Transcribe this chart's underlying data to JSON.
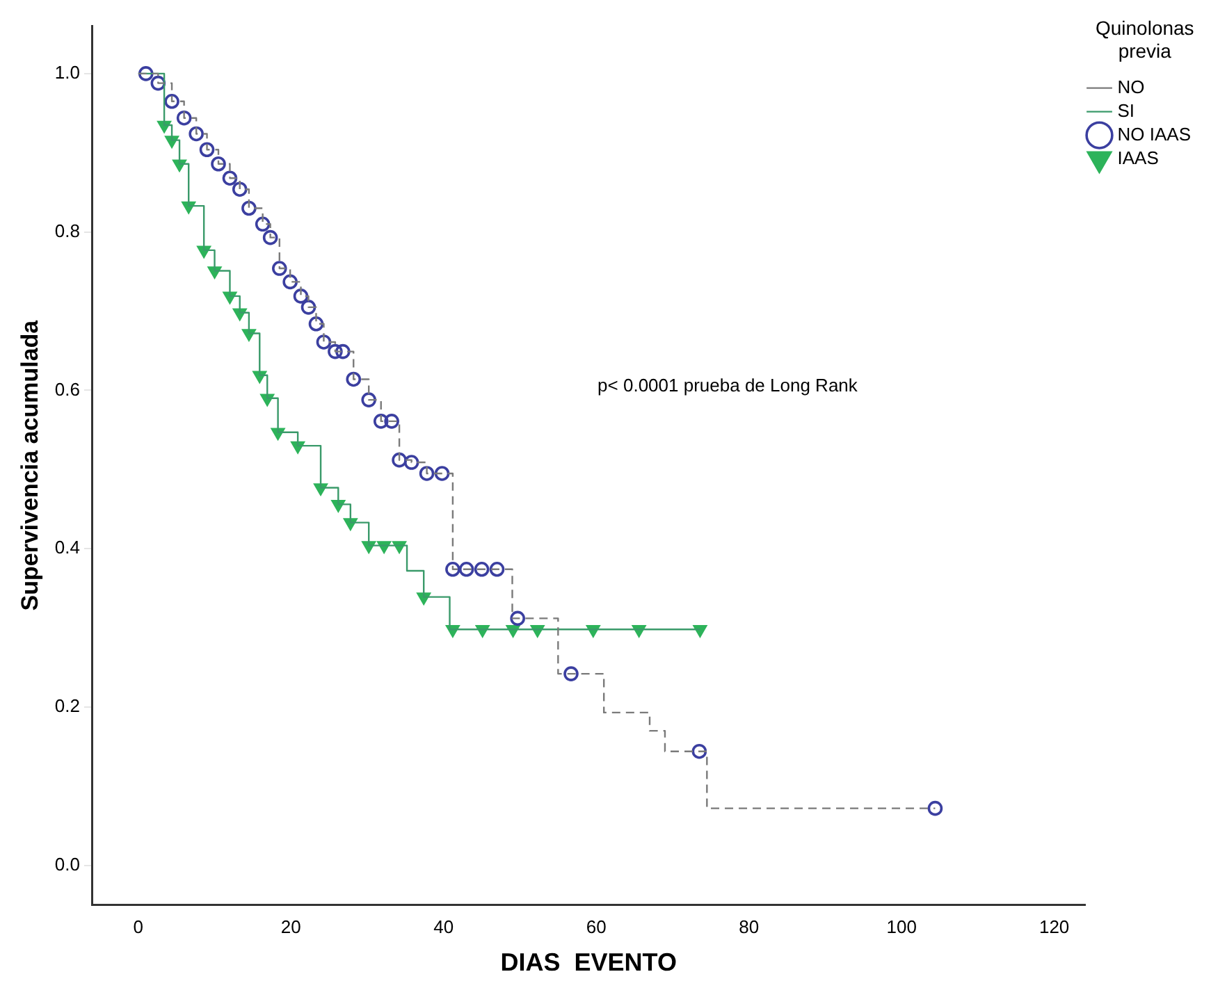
{
  "chart_data": {
    "type": "line",
    "xlabel": "DIAS  EVENTO",
    "ylabel": "Supervivencia acumulada",
    "legend_title": "Quinolonas previa",
    "legend": "top right",
    "grid": false,
    "xlim": [
      -6,
      124
    ],
    "xticks": [
      0,
      20,
      40,
      60,
      80,
      100,
      120
    ],
    "ylim": [
      -0.05,
      1.06
    ],
    "yticks": [
      {
        "value": 0,
        "label": "0.0"
      },
      {
        "value": 0.2,
        "label": "0.2"
      },
      {
        "value": 0.4,
        "label": "0.4"
      },
      {
        "value": 0.6,
        "label": "0.6"
      },
      {
        "value": 0.8,
        "label": "0.8"
      },
      {
        "value": 1,
        "label": "1.0"
      }
    ],
    "annotations": [
      "p< 0.0001 prueba de Long Rank"
    ],
    "series": [
      {
        "name": "NO",
        "type": "step",
        "color": "#7a7a7a",
        "line_style": "dashed",
        "marker": "none",
        "x": [
          0,
          1,
          2.6,
          4.4,
          6,
          7.6,
          9,
          10.5,
          12,
          13.3,
          14.5,
          16.3,
          17.3,
          18.5,
          19.9,
          21.3,
          22.3,
          23.3,
          24.3,
          25.8,
          28.2,
          30.2,
          31.8,
          34.2,
          35.8,
          37.8,
          41.2,
          49,
          55,
          61,
          67,
          69,
          74.5,
          104.4
        ],
        "values": [
          1,
          1,
          0.988,
          0.965,
          0.944,
          0.924,
          0.904,
          0.886,
          0.868,
          0.854,
          0.83,
          0.81,
          0.793,
          0.754,
          0.737,
          0.719,
          0.705,
          0.684,
          0.661,
          0.649,
          0.614,
          0.588,
          0.561,
          0.512,
          0.509,
          0.495,
          0.374,
          0.312,
          0.242,
          0.193,
          0.17,
          0.144,
          0.072,
          0.072
        ]
      },
      {
        "name": "SI",
        "type": "step",
        "color": "#3a9a6a",
        "line_style": "solid",
        "marker": "none",
        "x": [
          0,
          3.4,
          4.4,
          5.4,
          6.6,
          8.6,
          10,
          12,
          13.3,
          14.5,
          15.9,
          16.9,
          18.3,
          20.9,
          23.9,
          26.2,
          27.8,
          30.2,
          35.2,
          37.4,
          40.8,
          73.6
        ],
        "values": [
          1,
          0.935,
          0.916,
          0.886,
          0.833,
          0.777,
          0.751,
          0.719,
          0.698,
          0.672,
          0.619,
          0.59,
          0.547,
          0.53,
          0.477,
          0.456,
          0.433,
          0.404,
          0.372,
          0.339,
          0.298,
          0.298
        ]
      },
      {
        "name": "NO IAAS",
        "type": "scatter",
        "color": "#3b3fa0",
        "marker": "circle",
        "x": [
          1,
          2.6,
          4.4,
          6,
          7.6,
          9,
          10.5,
          12,
          13.3,
          14.5,
          16.3,
          17.3,
          18.5,
          19.9,
          21.3,
          22.3,
          23.3,
          24.3,
          25.8,
          26.8,
          28.2,
          30.2,
          31.8,
          33.2,
          34.2,
          35.8,
          37.8,
          39.8,
          41.2,
          43,
          45,
          47,
          49.7,
          56.7,
          73.5,
          104.4
        ],
        "values": [
          1,
          0.988,
          0.965,
          0.944,
          0.924,
          0.904,
          0.886,
          0.868,
          0.854,
          0.83,
          0.81,
          0.793,
          0.754,
          0.737,
          0.719,
          0.705,
          0.684,
          0.661,
          0.649,
          0.649,
          0.614,
          0.588,
          0.561,
          0.561,
          0.512,
          0.509,
          0.495,
          0.495,
          0.374,
          0.374,
          0.374,
          0.374,
          0.312,
          0.242,
          0.144,
          0.072
        ]
      },
      {
        "name": "IAAS",
        "type": "scatter",
        "color": "#2db35a",
        "marker": "triangle",
        "x": [
          3.4,
          4.4,
          5.4,
          6.6,
          8.6,
          10,
          12,
          13.3,
          14.5,
          15.9,
          16.9,
          18.3,
          20.9,
          23.9,
          26.2,
          27.8,
          30.2,
          32.2,
          34.2,
          37.4,
          41.2,
          45.1,
          49.1,
          52.3,
          59.6,
          65.6,
          73.6
        ],
        "values": [
          0.935,
          0.916,
          0.886,
          0.833,
          0.777,
          0.751,
          0.719,
          0.698,
          0.672,
          0.619,
          0.59,
          0.547,
          0.53,
          0.477,
          0.456,
          0.433,
          0.404,
          0.404,
          0.404,
          0.339,
          0.298,
          0.298,
          0.298,
          0.298,
          0.298,
          0.298,
          0.298
        ]
      }
    ]
  }
}
